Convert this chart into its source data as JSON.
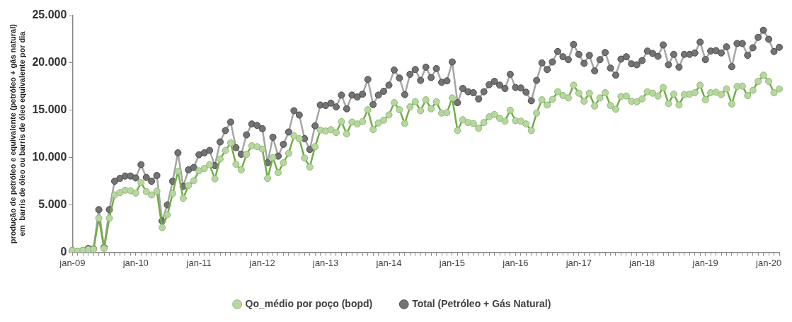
{
  "chart_data": {
    "type": "line",
    "ylabel": "produção de petróleo e equivalente (petróleo + gás natural)\nem  barris de óleo ou barris de óleo equivalente por dia",
    "categories": [
      "jan-09",
      null,
      null,
      null,
      null,
      null,
      null,
      null,
      null,
      null,
      null,
      null,
      "jan-10",
      null,
      null,
      null,
      null,
      null,
      null,
      null,
      null,
      null,
      null,
      null,
      "jan-11",
      null,
      null,
      null,
      null,
      null,
      null,
      null,
      null,
      null,
      null,
      null,
      "jan-12",
      null,
      null,
      null,
      null,
      null,
      null,
      null,
      null,
      null,
      null,
      null,
      "jan-13",
      null,
      null,
      null,
      null,
      null,
      null,
      null,
      null,
      null,
      null,
      null,
      "jan-14",
      null,
      null,
      null,
      null,
      null,
      null,
      null,
      null,
      null,
      null,
      null,
      "jan-15",
      null,
      null,
      null,
      null,
      null,
      null,
      null,
      null,
      null,
      null,
      null,
      "jan-16",
      null,
      null,
      null,
      null,
      null,
      null,
      null,
      null,
      null,
      null,
      null,
      "jan-17",
      null,
      null,
      null,
      null,
      null,
      null,
      null,
      null,
      null,
      null,
      null,
      "jan-18",
      null,
      null,
      null,
      null,
      null,
      null,
      null,
      null,
      null,
      null,
      null,
      "jan-19",
      null,
      null,
      null,
      null,
      null,
      null,
      null,
      null,
      null,
      null,
      null,
      "jan-20",
      null,
      null
    ],
    "series": [
      {
        "name": "Qo_médio por poço (bopd)",
        "color": "#70ad47",
        "values": [
          200,
          100,
          200,
          300,
          300,
          3600,
          400,
          3600,
          6050,
          6300,
          6550,
          6500,
          6250,
          7350,
          6400,
          6050,
          6450,
          2600,
          3950,
          6200,
          8550,
          5700,
          7050,
          7550,
          8600,
          8850,
          9250,
          7750,
          9850,
          10750,
          11550,
          9300,
          8700,
          10350,
          11250,
          11150,
          10900,
          7800,
          10000,
          8400,
          9450,
          10450,
          12300,
          12000,
          9950,
          9000,
          11150,
          12900,
          12800,
          12950,
          12650,
          13800,
          12500,
          13750,
          13550,
          13800,
          15050,
          12950,
          13650,
          13950,
          14500,
          15800,
          15050,
          13600,
          15350,
          15900,
          14950,
          16100,
          15150,
          15900,
          14700,
          14750,
          16300,
          12850,
          14000,
          13700,
          13600,
          13100,
          13700,
          14300,
          14550,
          14150,
          13850,
          15000,
          13900,
          13850,
          13550,
          12850,
          14700,
          16100,
          15550,
          16150,
          16950,
          16550,
          16300,
          17650,
          16800,
          15950,
          16800,
          15450,
          16300,
          16850,
          15500,
          15100,
          16450,
          16500,
          15950,
          15900,
          16200,
          16950,
          16800,
          16500,
          17400,
          15700,
          16700,
          15550,
          16650,
          16700,
          16850,
          17650,
          16100,
          16850,
          16900,
          16650,
          17250,
          15650,
          17500,
          17550,
          16550,
          17100,
          18050,
          18700,
          18050,
          16850,
          17250
        ]
      },
      {
        "name": "Total (Petróleo + Gás Natural)",
        "color": "#a5a5a5",
        "values": [
          200,
          100,
          200,
          400,
          350,
          4500,
          500,
          4500,
          7500,
          7800,
          8050,
          8050,
          7850,
          9250,
          7900,
          7500,
          8100,
          3300,
          5000,
          7500,
          10500,
          6950,
          8700,
          8950,
          10300,
          10500,
          10750,
          9150,
          11650,
          12850,
          13750,
          11050,
          10350,
          12400,
          13550,
          13400,
          13050,
          9450,
          12150,
          10150,
          11400,
          12700,
          14950,
          14500,
          12000,
          10850,
          13350,
          15550,
          15500,
          15750,
          15350,
          16600,
          15150,
          16600,
          16400,
          16700,
          18250,
          15600,
          16600,
          17000,
          17650,
          19250,
          18400,
          16650,
          18800,
          19300,
          18150,
          19550,
          18450,
          19400,
          17950,
          18100,
          20100,
          15800,
          17300,
          16950,
          16850,
          16200,
          16950,
          17700,
          18050,
          17650,
          17300,
          18800,
          17400,
          17350,
          16900,
          16000,
          18150,
          20000,
          19300,
          20100,
          21200,
          20650,
          20350,
          21950,
          20900,
          19950,
          20800,
          19150,
          20350,
          21100,
          19450,
          18700,
          20400,
          20650,
          19900,
          19800,
          20250,
          21250,
          21000,
          20700,
          21900,
          19800,
          20900,
          19550,
          20900,
          20900,
          21050,
          22200,
          20350,
          21250,
          21300,
          21050,
          21700,
          19600,
          22050,
          22050,
          20800,
          21600,
          22700,
          23450,
          22500,
          21200,
          21650
        ]
      }
    ],
    "ylim": [
      0,
      25000
    ],
    "yticks": [
      {
        "value": 0,
        "label": "0"
      },
      {
        "value": 5000,
        "label": "5.000"
      },
      {
        "value": 10000,
        "label": "10.000"
      },
      {
        "value": 15000,
        "label": "15.000"
      },
      {
        "value": 20000,
        "label": "20.000"
      },
      {
        "value": 25000,
        "label": "25.000"
      }
    ],
    "legend": "bottom",
    "marker": "circle",
    "line_style": "solid"
  }
}
